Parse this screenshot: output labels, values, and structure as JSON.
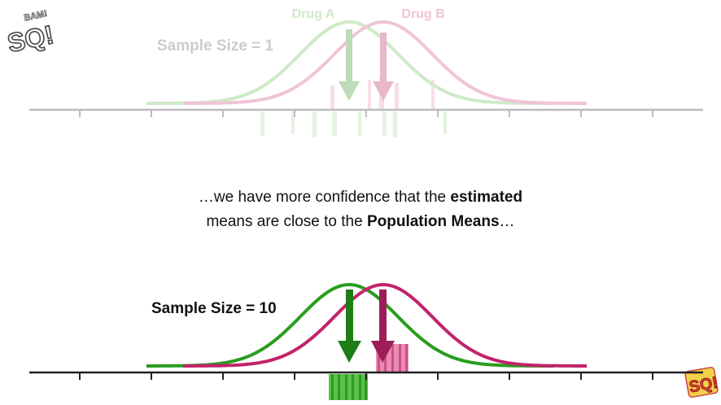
{
  "logos": {
    "top_left_text": "SQ!",
    "top_left_burst": "BAM!",
    "bottom_right_text": "SQ!"
  },
  "legend": {
    "drug_a": "Drug A",
    "drug_b": "Drug B"
  },
  "top_panel": {
    "label": "Sample Size = 1"
  },
  "bottom_panel": {
    "label": "Sample Size = 10"
  },
  "narration": {
    "line1_pre": "…we have more confidence that the ",
    "line1_bold": "estimated",
    "line2_pre": "means are close to the ",
    "line2_bold": "Population Means",
    "line2_post": "…"
  },
  "colors": {
    "drug_a": "#2a9d1e",
    "drug_b": "#c2236b",
    "drug_a_faded": "#cfe9c9",
    "drug_b_faded": "#f0c4d7",
    "axis": "#222222",
    "axis_faded": "#bbbbbb"
  }
}
